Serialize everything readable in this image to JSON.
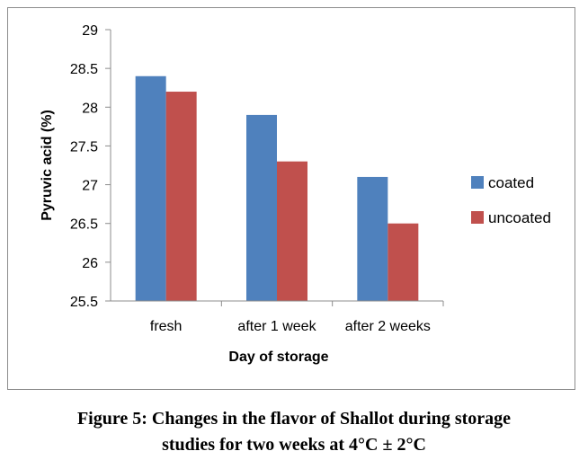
{
  "caption": {
    "line1": "Figure 5: Changes in the flavor of Shallot during storage",
    "line2": "studies for two weeks at 4°C ± 2°C"
  },
  "chart_data": {
    "type": "bar",
    "categories": [
      "fresh",
      "after 1 week",
      "after 2 weeks"
    ],
    "series": [
      {
        "name": "coated",
        "color": "#4f81bd",
        "values": [
          28.4,
          27.9,
          27.1
        ]
      },
      {
        "name": "uncoated",
        "color": "#c0504d",
        "values": [
          28.2,
          27.3,
          26.5
        ]
      }
    ],
    "xlabel": "Day of storage",
    "ylabel": "Pyruvic acid (%)",
    "ylim": [
      25.5,
      29
    ],
    "yticks": [
      "25.5",
      "26",
      "26.5",
      "27",
      "27.5",
      "28",
      "28.5",
      "29"
    ],
    "legend": "right",
    "grid": false
  }
}
